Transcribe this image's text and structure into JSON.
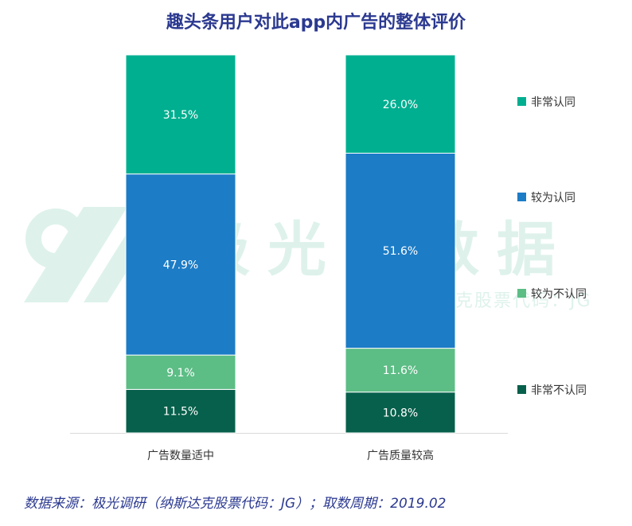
{
  "title": "趣头条用户对此app内广告的整体评价",
  "source_note": "数据来源：极光调研（纳斯达克股票代码：JG）；取数周期：2019.02",
  "watermark": {
    "main": "极光大数据",
    "sub": "纳斯达克股票代码：JG"
  },
  "colors": {
    "非常认同": "#00af90",
    "较为认同": "#1c7cc6",
    "较为不认同": "#5cbd85",
    "非常不认同": "#07604b",
    "title": "#2b3990",
    "axis": "#d9d9d9"
  },
  "chart_data": {
    "type": "bar",
    "stacked": true,
    "percent": true,
    "categories": [
      "广告数量适中",
      "广告质量较高"
    ],
    "series": [
      {
        "name": "非常不认同",
        "values": [
          11.5,
          10.8
        ]
      },
      {
        "name": "较为不认同",
        "values": [
          9.1,
          11.6
        ]
      },
      {
        "name": "较为认同",
        "values": [
          47.9,
          51.6
        ]
      },
      {
        "name": "非常认同",
        "values": [
          31.5,
          26.0
        ]
      }
    ],
    "data_labels": [
      [
        "11.5%",
        "10.8%"
      ],
      [
        "9.1%",
        "11.6%"
      ],
      [
        "47.9%",
        "51.6%"
      ],
      [
        "31.5%",
        "26.0%"
      ]
    ],
    "legend_order": [
      "非常认同",
      "较为认同",
      "较为不认同",
      "非常不认同"
    ],
    "legend_position": "right",
    "ylim": [
      0,
      100
    ],
    "grid": false
  }
}
